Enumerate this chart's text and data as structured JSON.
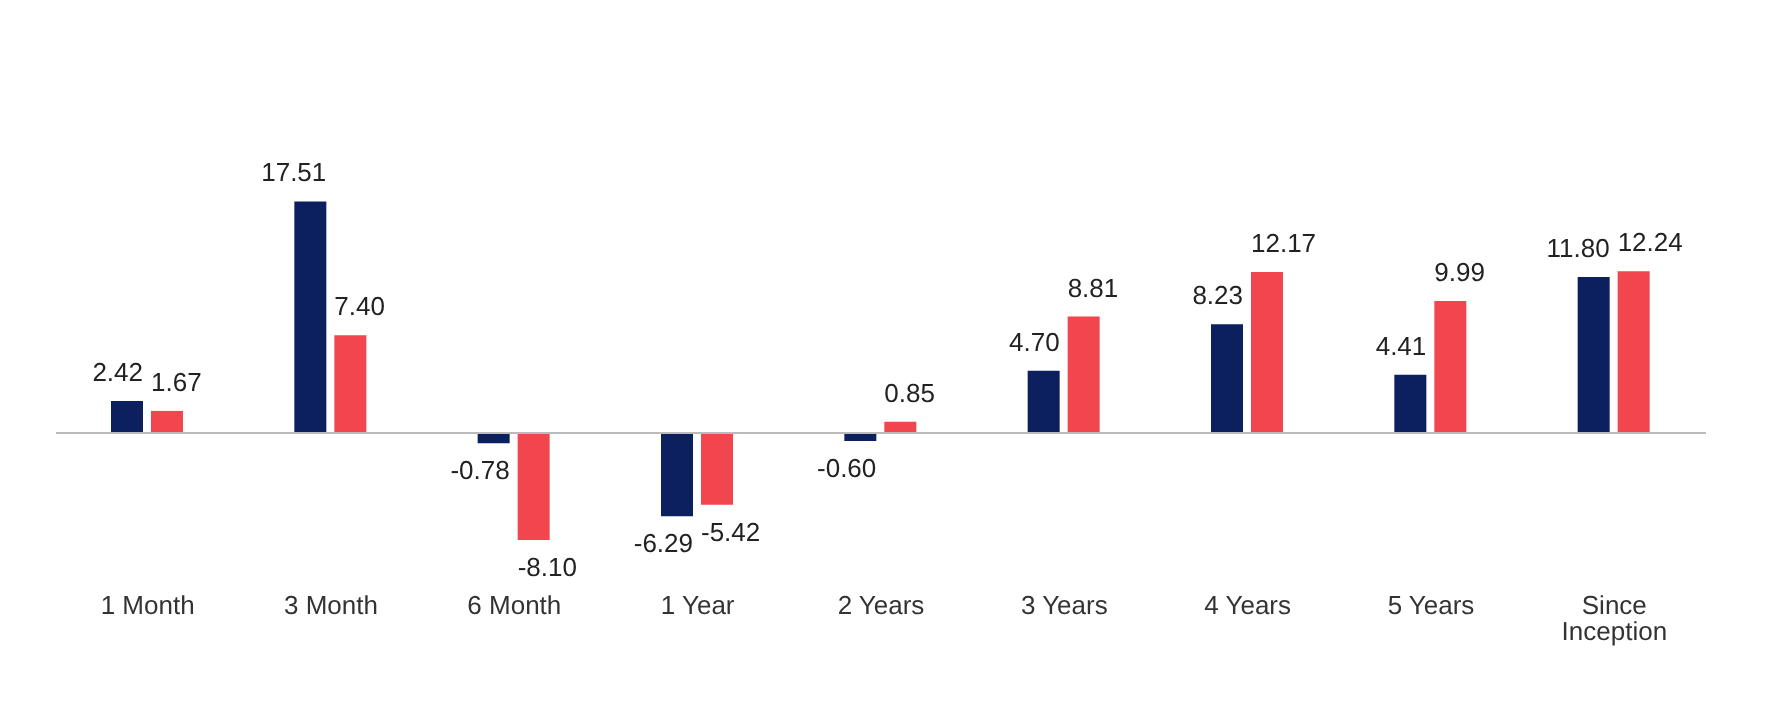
{
  "chart_data": {
    "type": "bar",
    "categories": [
      "1 Month",
      "3 Month",
      "6 Month",
      "1 Year",
      "2 Years",
      "3 Years",
      "4 Years",
      "5 Years",
      "Since Inception"
    ],
    "series": [
      {
        "color": "#0c1f5e",
        "values": [
          2.42,
          17.51,
          -0.78,
          -6.29,
          -0.6,
          4.7,
          8.23,
          4.41,
          11.8
        ],
        "value_labels": [
          "2.42",
          "17.51",
          "-0.78",
          "-6.29",
          "-0.60",
          "4.70",
          "8.23",
          "4.41",
          "11.80"
        ]
      },
      {
        "color": "#f2464f",
        "values": [
          1.67,
          7.4,
          -8.1,
          -5.42,
          0.85,
          8.81,
          12.17,
          9.99,
          12.24
        ],
        "value_labels": [
          "1.67",
          "7.40",
          "-8.10",
          "-5.42",
          "0.85",
          "8.81",
          "12.17",
          "9.99",
          "12.24"
        ]
      }
    ]
  }
}
